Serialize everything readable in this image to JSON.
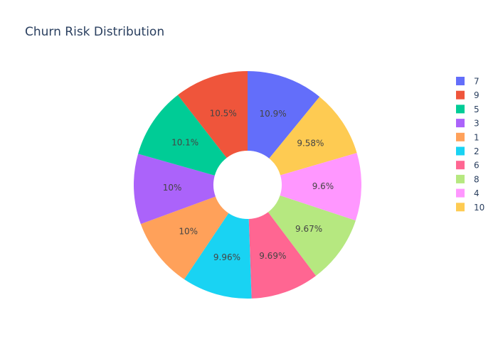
{
  "chart_data": {
    "type": "pie",
    "title": "Churn Risk Distribution",
    "hole": true,
    "direction": "clockwise",
    "labels": [
      "7",
      "10",
      "4",
      "8",
      "6",
      "2",
      "1",
      "3",
      "5",
      "9"
    ],
    "values": [
      10.9,
      9.58,
      9.6,
      9.67,
      9.69,
      9.96,
      10.0,
      10.0,
      10.1,
      10.5
    ],
    "slice_text": [
      "10.9%",
      "9.58%",
      "9.6%",
      "9.67%",
      "9.69%",
      "9.96%",
      "10%",
      "10%",
      "10.1%",
      "10.5%"
    ],
    "colors": [
      "#636efa",
      "#fecb52",
      "#ff97ff",
      "#b6e880",
      "#ff6692",
      "#19d3f3",
      "#ffa15a",
      "#ab63fa",
      "#00cc96",
      "#ef553b"
    ],
    "legend": {
      "position": "right",
      "entries": [
        {
          "label": "7",
          "color": "#636efa"
        },
        {
          "label": "9",
          "color": "#ef553b"
        },
        {
          "label": "5",
          "color": "#00cc96"
        },
        {
          "label": "3",
          "color": "#ab63fa"
        },
        {
          "label": "1",
          "color": "#ffa15a"
        },
        {
          "label": "2",
          "color": "#19d3f3"
        },
        {
          "label": "6",
          "color": "#ff6692"
        },
        {
          "label": "8",
          "color": "#b6e880"
        },
        {
          "label": "4",
          "color": "#ff97ff"
        },
        {
          "label": "10",
          "color": "#fecb52"
        }
      ]
    }
  }
}
